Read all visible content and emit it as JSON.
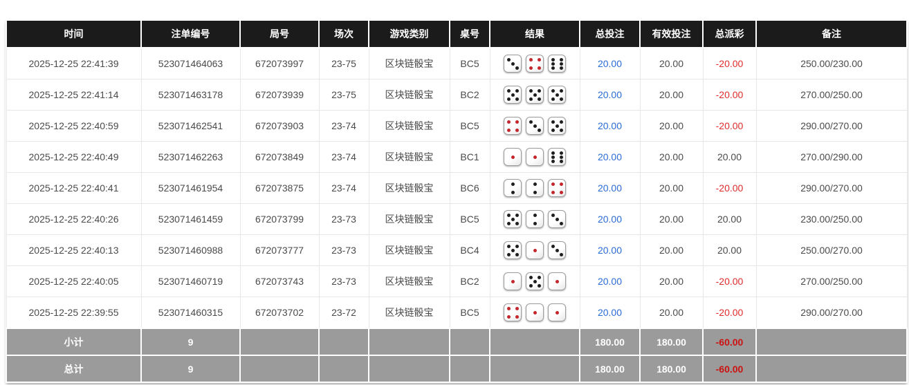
{
  "colors": {
    "header_bg": "#1b1b1b",
    "footer_bg": "#9b9b9b",
    "bet_blue": "#2b6bd8",
    "loss_red": "#e02b2b",
    "footer_red": "#cc1111",
    "pip_black": "#1e1e1e",
    "pip_red": "#c3272b"
  },
  "table": {
    "headers": [
      "时间",
      "注单编号",
      "局号",
      "场次",
      "游戏类别",
      "桌号",
      "结果",
      "总投注",
      "有效投注",
      "总派彩",
      "备注"
    ],
    "rows": [
      {
        "time": "2025-12-25 22:41:39",
        "bet_id": "523071464063",
        "round": "672073997",
        "session": "23-75",
        "game": "区块链骰宝",
        "table_no": "BC5",
        "dice": [
          3,
          4,
          6
        ],
        "total_bet": "20.00",
        "valid_bet": "20.00",
        "payout": "-20.00",
        "remark": "250.00/230.00"
      },
      {
        "time": "2025-12-25 22:41:14",
        "bet_id": "523071463178",
        "round": "672073939",
        "session": "23-75",
        "game": "区块链骰宝",
        "table_no": "BC2",
        "dice": [
          5,
          5,
          5
        ],
        "total_bet": "20.00",
        "valid_bet": "20.00",
        "payout": "-20.00",
        "remark": "270.00/250.00"
      },
      {
        "time": "2025-12-25 22:40:59",
        "bet_id": "523071462541",
        "round": "672073903",
        "session": "23-74",
        "game": "区块链骰宝",
        "table_no": "BC5",
        "dice": [
          4,
          3,
          5
        ],
        "total_bet": "20.00",
        "valid_bet": "20.00",
        "payout": "-20.00",
        "remark": "290.00/270.00"
      },
      {
        "time": "2025-12-25 22:40:49",
        "bet_id": "523071462263",
        "round": "672073849",
        "session": "23-74",
        "game": "区块链骰宝",
        "table_no": "BC1",
        "dice": [
          1,
          1,
          6
        ],
        "total_bet": "20.00",
        "valid_bet": "20.00",
        "payout": "20.00",
        "remark": "270.00/290.00"
      },
      {
        "time": "2025-12-25 22:40:41",
        "bet_id": "523071461954",
        "round": "672073875",
        "session": "23-74",
        "game": "区块链骰宝",
        "table_no": "BC6",
        "dice": [
          2,
          2,
          4
        ],
        "total_bet": "20.00",
        "valid_bet": "20.00",
        "payout": "-20.00",
        "remark": "290.00/270.00"
      },
      {
        "time": "2025-12-25 22:40:26",
        "bet_id": "523071461459",
        "round": "672073799",
        "session": "23-73",
        "game": "区块链骰宝",
        "table_no": "BC5",
        "dice": [
          5,
          2,
          3
        ],
        "total_bet": "20.00",
        "valid_bet": "20.00",
        "payout": "20.00",
        "remark": "230.00/250.00"
      },
      {
        "time": "2025-12-25 22:40:13",
        "bet_id": "523071460988",
        "round": "672073777",
        "session": "23-73",
        "game": "区块链骰宝",
        "table_no": "BC4",
        "dice": [
          5,
          1,
          3
        ],
        "total_bet": "20.00",
        "valid_bet": "20.00",
        "payout": "20.00",
        "remark": "250.00/270.00"
      },
      {
        "time": "2025-12-25 22:40:05",
        "bet_id": "523071460719",
        "round": "672073743",
        "session": "23-73",
        "game": "区块链骰宝",
        "table_no": "BC2",
        "dice": [
          1,
          5,
          1
        ],
        "total_bet": "20.00",
        "valid_bet": "20.00",
        "payout": "-20.00",
        "remark": "270.00/250.00"
      },
      {
        "time": "2025-12-25 22:39:55",
        "bet_id": "523071460315",
        "round": "672073702",
        "session": "23-72",
        "game": "区块链骰宝",
        "table_no": "BC5",
        "dice": [
          4,
          1,
          1
        ],
        "total_bet": "20.00",
        "valid_bet": "20.00",
        "payout": "-20.00",
        "remark": "290.00/270.00"
      }
    ],
    "subtotal": {
      "label": "小计",
      "count": "9",
      "total_bet": "180.00",
      "valid_bet": "180.00",
      "payout": "-60.00"
    },
    "total": {
      "label": "总计",
      "count": "9",
      "total_bet": "180.00",
      "valid_bet": "180.00",
      "payout": "-60.00"
    }
  }
}
